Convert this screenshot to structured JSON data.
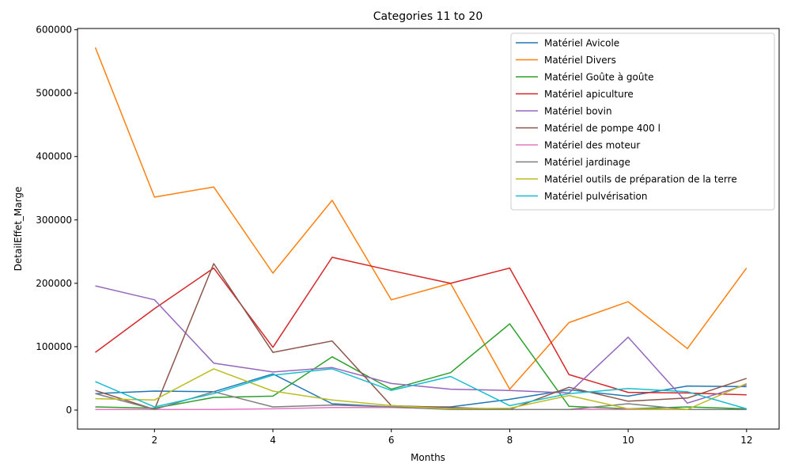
{
  "chart_data": {
    "type": "line",
    "title": "Categories 11 to 20",
    "xlabel": "Months",
    "ylabel": "DetailEffet_Marge",
    "xlim": [
      0.7,
      12.55
    ],
    "ylim": [
      -30000,
      602000
    ],
    "xticks": [
      2,
      4,
      6,
      8,
      10,
      12
    ],
    "yticks": [
      0,
      100000,
      200000,
      300000,
      400000,
      500000,
      600000
    ],
    "grid": false,
    "legend_position": "top-right",
    "x": [
      1,
      2,
      3,
      4,
      5,
      6,
      7,
      8,
      9,
      10,
      11,
      12
    ],
    "series": [
      {
        "name": "Matériel Avicole",
        "color": "#1f77b4",
        "values": [
          26000,
          30000,
          29000,
          57000,
          10000,
          5000,
          5000,
          17000,
          32000,
          22000,
          38000,
          37000
        ]
      },
      {
        "name": "Matériel Divers",
        "color": "#ff7f0e",
        "values": [
          572000,
          336000,
          352000,
          216000,
          331000,
          174000,
          200000,
          33000,
          138000,
          171000,
          97000,
          224000
        ]
      },
      {
        "name": "Matériel Goûte à goûte",
        "color": "#2ca02c",
        "values": [
          5000,
          3000,
          20000,
          22000,
          84000,
          33000,
          59000,
          136000,
          6000,
          2000,
          5000,
          2000
        ]
      },
      {
        "name": "Matériel apiculture",
        "color": "#d62728",
        "values": [
          91000,
          160000,
          224000,
          99000,
          241000,
          220000,
          200000,
          224000,
          56000,
          28000,
          27000,
          24000
        ]
      },
      {
        "name": "Matériel bovin",
        "color": "#9467bd",
        "values": [
          196000,
          174000,
          74000,
          60000,
          67000,
          42000,
          33000,
          31000,
          27000,
          115000,
          11000,
          40000
        ]
      },
      {
        "name": "Matériel de pompe 400 l",
        "color": "#8c564b",
        "values": [
          31000,
          1000,
          231000,
          91000,
          109000,
          7000,
          4000,
          1000,
          36000,
          14000,
          19000,
          50000
        ]
      },
      {
        "name": "Matériel des moteur",
        "color": "#e377c2",
        "values": [
          1000,
          1000,
          1000,
          2000,
          4000,
          4000,
          2000,
          1000,
          1000,
          1000,
          1000,
          1000
        ]
      },
      {
        "name": "Matériel jardinage",
        "color": "#7f7f7f",
        "values": [
          26000,
          1000,
          29000,
          5000,
          8000,
          5000,
          1000,
          1000,
          1000,
          10000,
          1000,
          1000
        ]
      },
      {
        "name": "Matériel outils de préparation de la terre",
        "color": "#bcbd22",
        "values": [
          18000,
          16000,
          65000,
          30000,
          16000,
          7000,
          2000,
          3000,
          23000,
          2000,
          1000,
          42000
        ]
      },
      {
        "name": "Matériel pulvérisation",
        "color": "#17becf",
        "values": [
          45000,
          5000,
          26000,
          55000,
          65000,
          31000,
          53000,
          7000,
          26000,
          34000,
          29000,
          2000
        ]
      }
    ]
  }
}
